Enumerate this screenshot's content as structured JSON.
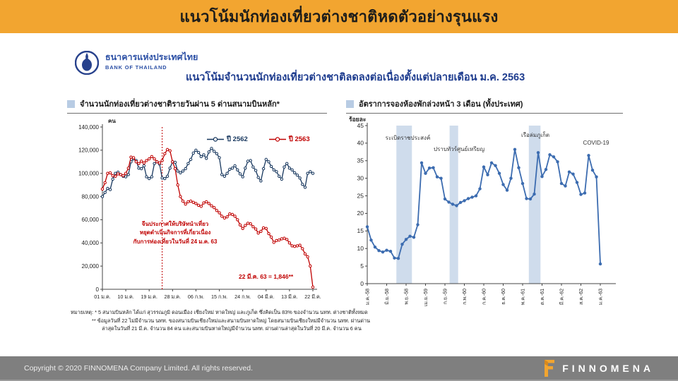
{
  "header": {
    "title": "แนวโน้มนักท่องเที่ยวต่างชาติหดตัวอย่างรุนแรง"
  },
  "bank": {
    "name_th": "ธนาคารแห่งประเทศไทย",
    "name_en": "BANK OF THAILAND"
  },
  "subtitle": "แนวโน้มจำนวนนักท่องเที่ยวต่างชาติลดลงต่อเนื่องตั้งแต่ปลายเดือน ม.ค. 2563",
  "colors": {
    "accent_orange": "#F2A530",
    "navy_2562": "#17375E",
    "red_2563": "#C00000",
    "booking_blue": "#3C6CB0",
    "band_fill": "#CFDCEC",
    "footer_gray": "#7F7F7F"
  },
  "chart_data": [
    {
      "type": "line",
      "title": "จำนวนนักท่องเที่ยวต่างชาติรายวันผ่าน 5 ด่านสนามบินหลัก*",
      "ylabel": "คน",
      "ylim": [
        0,
        140000
      ],
      "yticks": [
        0,
        20000,
        40000,
        60000,
        80000,
        100000,
        120000,
        140000
      ],
      "xtick_labels": [
        "01 ม.ค.",
        "10 ม.ค.",
        "19 ม.ค.",
        "28 ม.ค.",
        "06 ก.พ.",
        "15 ก.พ.",
        "24 ก.พ.",
        "04 มี.ค.",
        "13 มี.ค.",
        "22 มี.ค."
      ],
      "xtick_positions": [
        0,
        9,
        18,
        27,
        36,
        45,
        54,
        63,
        72,
        81
      ],
      "grid": false,
      "legend_position": "top-right-inside",
      "vline": {
        "x": 23,
        "color": "#C00000",
        "style": "dotted"
      },
      "series": [
        {
          "name": "ปี 2562",
          "color": "#17375E",
          "values": [
            80000,
            83500,
            87000,
            86000,
            95000,
            100000,
            101000,
            99000,
            97500,
            97000,
            99000,
            110000,
            112500,
            111000,
            104500,
            104000,
            106500,
            97000,
            95500,
            97000,
            108500,
            110000,
            108000,
            96000,
            95500,
            97500,
            104500,
            110000,
            109500,
            102000,
            100500,
            102000,
            104000,
            108500,
            112000,
            117500,
            120000,
            118000,
            114500,
            116000,
            113000,
            118500,
            121500,
            119000,
            117000,
            113500,
            99000,
            97500,
            100000,
            103500,
            104500,
            106500,
            103000,
            99500,
            97000,
            104500,
            110500,
            111000,
            105500,
            102500,
            96500,
            93500,
            104000,
            112000,
            110000,
            106000,
            103000,
            101500,
            97500,
            95000,
            105500,
            108500,
            104500,
            103000,
            100500,
            98500,
            96000,
            90500,
            88000,
            100000,
            101500,
            100000
          ]
        },
        {
          "name": "ปี 2563",
          "color": "#C00000",
          "values": [
            86500,
            92000,
            100000,
            100500,
            98000,
            97500,
            99500,
            99000,
            98000,
            100000,
            104500,
            114000,
            113500,
            110000,
            108500,
            110500,
            109000,
            111000,
            112500,
            114500,
            112500,
            110000,
            109000,
            111000,
            117000,
            120500,
            119500,
            110000,
            104000,
            90000,
            80000,
            76000,
            73500,
            75500,
            76000,
            75000,
            74000,
            72500,
            71500,
            74500,
            75500,
            74000,
            72000,
            70500,
            68000,
            66000,
            63000,
            61500,
            62500,
            65000,
            64500,
            63000,
            60000,
            55500,
            52500,
            55000,
            57000,
            56500,
            54000,
            52000,
            48500,
            50000,
            53000,
            52500,
            48000,
            45000,
            40500,
            42000,
            42500,
            43500,
            44000,
            43000,
            40000,
            37500,
            37000,
            37500,
            38000,
            35000,
            30500,
            28000,
            20000,
            1846
          ]
        }
      ],
      "annotations": {
        "event_lines": [
          "จีนประกาศให้บริษัทนำเที่ยว",
          "หยุดดำเนินกิจการที่เกี่ยวเนื่อง",
          "กับการท่องเที่ยวในวันที่ 24 ม.ค. 63"
        ],
        "last_value": "22 มี.ค. 63 = 1,846**"
      }
    },
    {
      "type": "line",
      "title": "อัตราการจองห้องพักล่วงหน้า 3 เดือน (ทั้งประเทศ)",
      "ylabel": "ร้อยละ",
      "ylim": [
        0,
        45
      ],
      "yticks": [
        0,
        5,
        10,
        15,
        20,
        25,
        30,
        35,
        40,
        45
      ],
      "xtick_labels": [
        "ม.ค.-58",
        "มิ.ย.-58",
        "พ.ย.-58",
        "เม.ย.-59",
        "ก.ย.-59",
        "ก.พ.-60",
        "ก.ค.-60",
        "ธ.ค.-60",
        "พ.ค.-61",
        "ต.ค.-61",
        "มี.ค.-62",
        "ส.ค.-62",
        "ม.ค.-63"
      ],
      "xtick_positions": [
        0,
        5,
        10,
        15,
        20,
        25,
        30,
        35,
        40,
        45,
        50,
        55,
        60
      ],
      "grid": false,
      "bands": [
        {
          "from": 7.5,
          "to": 11.5,
          "label": "ระเบิดราชประสงค์"
        },
        {
          "from": 21.2,
          "to": 23.4,
          "label": "ปราบทัวร์ศูนย์เหรียญ"
        },
        {
          "from": 41.6,
          "to": 44.6,
          "label": "เรือล่มภูเก็ต"
        }
      ],
      "annotations": [
        "COVID-19"
      ],
      "series": [
        {
          "name": "อัตราการจองห้องพักล่วงหน้า 3 เดือน",
          "color": "#3C6CB0",
          "values": [
            16.2,
            12.4,
            10.4,
            9.4,
            9.0,
            9.5,
            9.2,
            7.3,
            7.2,
            11.2,
            12.6,
            13.5,
            13.2,
            16.8,
            34.4,
            31.4,
            32.9,
            33.0,
            30.4,
            30.0,
            24.1,
            23.2,
            22.6,
            22.2,
            23.1,
            23.6,
            24.2,
            24.6,
            25.0,
            27.0,
            33.2,
            31.0,
            34.4,
            33.6,
            31.4,
            28.2,
            26.6,
            30.0,
            38.2,
            33.0,
            28.5,
            24.2,
            24.1,
            25.5,
            37.3,
            30.5,
            32.5,
            36.7,
            36.1,
            34.7,
            28.5,
            27.8,
            31.8,
            31.2,
            28.8,
            25.4,
            25.8,
            36.5,
            32.3,
            30.4,
            5.6
          ]
        }
      ]
    }
  ],
  "footnote": {
    "lines": [
      "หมายเหตุ: * 5 สนามบินหลัก ได้แก่ สุวรรณภูมิ ดอนเมือง เชียงใหม่ หาดใหญ่ และภูเก็ต ซึ่งคิดเป็น 83% ของจำนวน นทท. ต่างชาติทั้งหมด",
      "** ข้อมูลวันที่ 22 ไม่มีจำนวน นทท. ของสนามบินเชียงใหม่และสนามบินหาดใหญ่ โดยสนามบินเชียงใหม่มีจำนวน นทท. ผ่านด่าน",
      "ล่าสุดในวันที่ 21 มี.ค. จำนวน 84 คน และสนามบินหาดใหญ่มีจำนวน นทท. ผ่านด่านล่าสุดในวันที่ 20 มี.ค. จำนวน 6 คน"
    ]
  },
  "footer": {
    "copyright": "Copyright © 2020 FINNOMENA Company Limited. All rights reserved.",
    "brand": "FINNOMENA"
  }
}
